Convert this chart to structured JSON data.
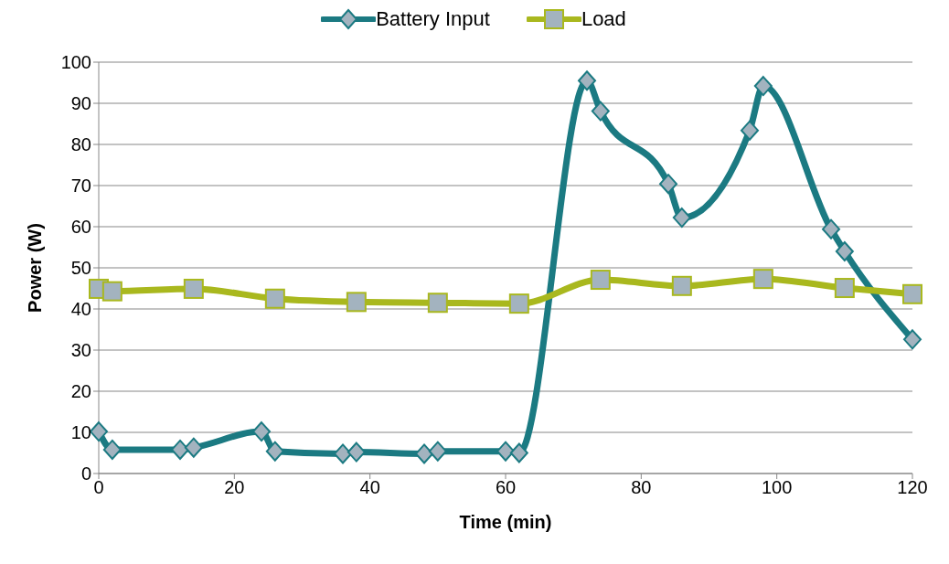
{
  "chart_data": {
    "type": "line",
    "xlabel": "Time (min)",
    "ylabel": "Power (W)",
    "xlim": [
      0,
      120
    ],
    "xticks": [
      0,
      20,
      40,
      60,
      80,
      100,
      120
    ],
    "ylim": [
      0,
      100
    ],
    "yticks": [
      0,
      10,
      20,
      30,
      40,
      50,
      60,
      70,
      80,
      90,
      100
    ],
    "grid": "y",
    "legend": "top",
    "line_style": "solid",
    "series": [
      {
        "name": "Battery Input",
        "color": "#1b7a82",
        "marker": "diamond",
        "x": [
          0,
          2,
          12,
          14,
          24,
          26,
          36,
          38,
          48,
          50,
          60,
          62,
          72,
          74,
          84,
          86,
          96,
          98,
          108,
          110,
          120
        ],
        "values": [
          10.2,
          5.8,
          5.8,
          6.3,
          10.2,
          5.4,
          4.8,
          5.2,
          4.8,
          5.4,
          5.4,
          5.0,
          95.5,
          88.1,
          70.4,
          62.2,
          83.4,
          94.2,
          59.4,
          54,
          32.6
        ]
      },
      {
        "name": "Load",
        "color": "#a9b81e",
        "marker": "square",
        "x": [
          0,
          2,
          14,
          26,
          38,
          50,
          62,
          74,
          86,
          98,
          110,
          120
        ],
        "values": [
          44.9,
          44.3,
          44.9,
          42.5,
          41.7,
          41.5,
          41.3,
          47.1,
          45.6,
          47.3,
          45.1,
          43.6
        ]
      }
    ]
  }
}
